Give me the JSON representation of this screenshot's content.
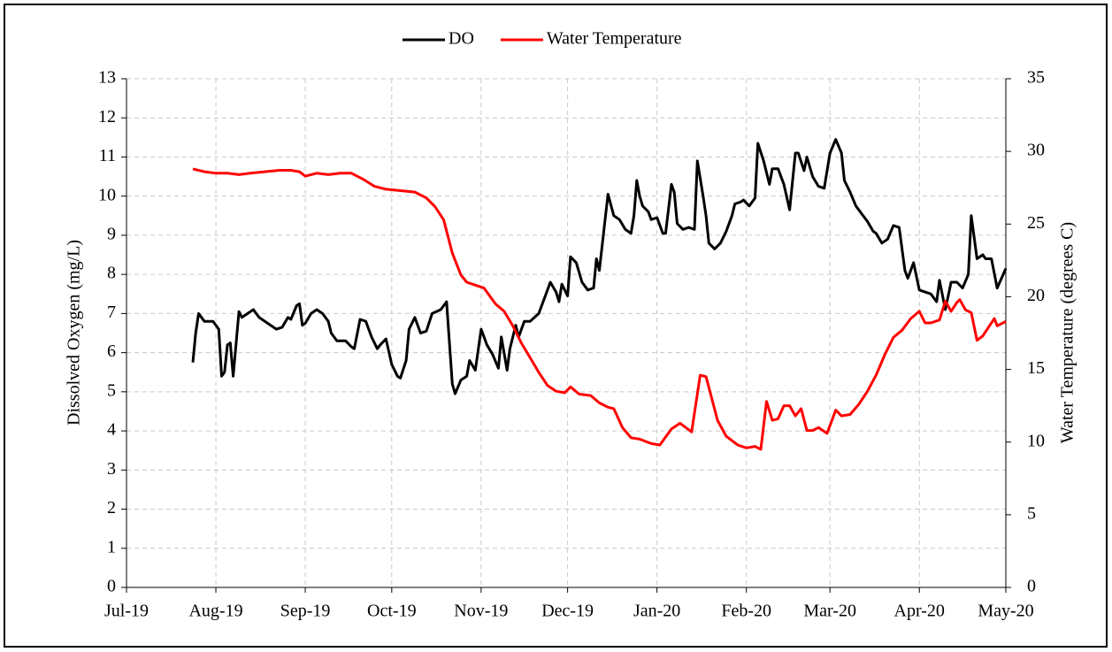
{
  "chart_data": {
    "type": "line",
    "ylabel": "Dissolved Oxygen (mg/L)",
    "y2label": "Water Temperature (degrees C)",
    "xlim": [
      0,
      305
    ],
    "xticks": [
      {
        "value": 0,
        "label": "Jul-19"
      },
      {
        "value": 31,
        "label": "Aug-19"
      },
      {
        "value": 62,
        "label": "Sep-19"
      },
      {
        "value": 92,
        "label": "Oct-19"
      },
      {
        "value": 123,
        "label": "Nov-19"
      },
      {
        "value": 153,
        "label": "Dec-19"
      },
      {
        "value": 184,
        "label": "Jan-20"
      },
      {
        "value": 215,
        "label": "Feb-20"
      },
      {
        "value": 244,
        "label": "Mar-20"
      },
      {
        "value": 275,
        "label": "Apr-20"
      },
      {
        "value": 305,
        "label": "May-20"
      }
    ],
    "ylim": [
      0,
      13
    ],
    "yticks": [
      0,
      1,
      2,
      3,
      4,
      5,
      6,
      7,
      8,
      9,
      10,
      11,
      12,
      13
    ],
    "y2lim": [
      0,
      35
    ],
    "y2ticks": [
      0,
      5,
      10,
      15,
      20,
      25,
      30,
      35
    ],
    "grid": true,
    "legend": "top",
    "series": [
      {
        "name": "DO",
        "color": "#000000",
        "x": [
          23,
          24,
          25,
          27,
          30,
          32,
          33,
          34,
          35,
          36,
          37,
          39,
          40,
          42,
          44,
          46,
          48,
          50,
          52,
          54,
          56,
          57,
          59,
          60,
          61,
          62,
          64,
          66,
          68,
          70,
          71,
          73,
          76,
          78,
          79,
          81,
          83,
          85,
          87,
          88,
          90,
          92,
          94,
          95,
          97,
          98,
          100,
          102,
          104,
          106,
          109,
          111,
          113,
          114,
          116,
          118,
          119,
          121,
          123,
          125,
          127,
          129,
          130,
          132,
          133,
          135,
          136,
          138,
          140,
          143,
          145,
          147,
          149,
          150,
          151,
          153,
          154,
          156,
          158,
          160,
          162,
          163,
          164,
          166,
          167,
          169,
          171,
          173,
          175,
          176,
          177,
          178,
          179,
          181,
          182,
          184,
          186,
          187,
          189,
          190,
          191,
          193,
          195,
          197,
          198,
          200,
          201,
          202,
          204,
          206,
          208,
          210,
          211,
          213,
          214,
          216,
          218,
          219,
          221,
          223,
          224,
          226,
          228,
          230,
          232,
          233,
          235,
          236,
          238,
          240,
          242,
          244,
          246,
          248,
          249,
          251,
          253,
          255,
          257,
          259,
          260,
          262,
          264,
          266,
          268,
          270,
          271,
          273,
          275,
          277,
          279,
          281,
          282,
          284,
          286,
          288,
          290,
          292,
          293,
          295,
          297,
          298,
          300,
          302,
          305
        ],
        "values": [
          5.75,
          6.5,
          7.0,
          6.8,
          6.8,
          6.6,
          5.4,
          5.5,
          6.2,
          6.25,
          5.4,
          7.05,
          6.9,
          7.0,
          7.1,
          6.9,
          6.8,
          6.7,
          6.6,
          6.65,
          6.9,
          6.85,
          7.2,
          7.25,
          6.7,
          6.75,
          7.0,
          7.1,
          7.0,
          6.8,
          6.5,
          6.3,
          6.3,
          6.15,
          6.1,
          6.85,
          6.8,
          6.4,
          6.1,
          6.2,
          6.35,
          5.7,
          5.4,
          5.35,
          5.8,
          6.6,
          6.9,
          6.5,
          6.55,
          7.0,
          7.1,
          7.3,
          5.2,
          4.95,
          5.3,
          5.4,
          5.8,
          5.55,
          6.6,
          6.2,
          5.95,
          5.6,
          6.4,
          5.55,
          6.1,
          6.7,
          6.4,
          6.8,
          6.8,
          7.0,
          7.4,
          7.8,
          7.55,
          7.3,
          7.75,
          7.45,
          8.45,
          8.3,
          7.8,
          7.6,
          7.65,
          8.4,
          8.1,
          9.4,
          10.05,
          9.5,
          9.4,
          9.15,
          9.05,
          9.5,
          10.4,
          10.0,
          9.75,
          9.6,
          9.4,
          9.45,
          9.05,
          9.05,
          10.3,
          10.1,
          9.3,
          9.15,
          9.2,
          9.15,
          10.9,
          10.0,
          9.5,
          8.8,
          8.65,
          8.8,
          9.1,
          9.5,
          9.8,
          9.85,
          9.9,
          9.75,
          9.95,
          11.35,
          10.9,
          10.3,
          10.7,
          10.7,
          10.3,
          9.65,
          11.1,
          11.1,
          10.65,
          11.0,
          10.5,
          10.25,
          10.2,
          11.1,
          11.45,
          11.1,
          10.4,
          10.1,
          9.75,
          9.55,
          9.35,
          9.1,
          9.05,
          8.8,
          8.9,
          9.25,
          9.2,
          8.1,
          7.9,
          8.3,
          7.6,
          7.55,
          7.5,
          7.3,
          7.85,
          7.1,
          7.8,
          7.8,
          7.65,
          8.0,
          9.5,
          8.4,
          8.5,
          8.4,
          8.4,
          7.65,
          8.15
        ]
      },
      {
        "name": "Water Temperature",
        "color": "#ff0000",
        "axis": "y2",
        "x": [
          23,
          27,
          31,
          35,
          39,
          43,
          48,
          53,
          57,
          60,
          62,
          66,
          70,
          74,
          78,
          82,
          86,
          90,
          95,
          100,
          104,
          107,
          110,
          113,
          116,
          118,
          121,
          124,
          128,
          131,
          134,
          137,
          140,
          143,
          146,
          149,
          152,
          154,
          157,
          161,
          164,
          167,
          169,
          172,
          175,
          178,
          182,
          185,
          189,
          192,
          196,
          199,
          201,
          205,
          208,
          212,
          215,
          218,
          220,
          222,
          224,
          226,
          228,
          230,
          232,
          234,
          236,
          238,
          240,
          243,
          246,
          248,
          251,
          254,
          257,
          260,
          263,
          266,
          269,
          272,
          275,
          277,
          279,
          282,
          284,
          286,
          288,
          289,
          291,
          293,
          295,
          297,
          299,
          301,
          302,
          305
        ],
        "values": [
          28.8,
          28.6,
          28.5,
          28.5,
          28.4,
          28.5,
          28.6,
          28.7,
          28.7,
          28.6,
          28.3,
          28.5,
          28.4,
          28.5,
          28.5,
          28.1,
          27.6,
          27.4,
          27.3,
          27.2,
          26.8,
          26.2,
          25.3,
          23.0,
          21.5,
          21.0,
          20.8,
          20.6,
          19.5,
          19.0,
          18.0,
          16.8,
          15.8,
          14.8,
          13.9,
          13.5,
          13.4,
          13.8,
          13.3,
          13.2,
          12.7,
          12.4,
          12.3,
          11.0,
          10.3,
          10.2,
          9.9,
          9.8,
          10.9,
          11.3,
          10.7,
          14.6,
          14.5,
          11.5,
          10.4,
          9.8,
          9.6,
          9.7,
          9.5,
          12.8,
          11.5,
          11.6,
          12.5,
          12.5,
          11.8,
          12.3,
          10.8,
          10.8,
          11.0,
          10.6,
          12.2,
          11.8,
          11.9,
          12.6,
          13.5,
          14.6,
          16.0,
          17.2,
          17.7,
          18.5,
          19.0,
          18.2,
          18.2,
          18.4,
          19.7,
          19.0,
          19.6,
          19.8,
          19.1,
          18.9,
          17.0,
          17.3,
          17.9,
          18.5,
          18.0,
          18.3
        ]
      }
    ]
  }
}
